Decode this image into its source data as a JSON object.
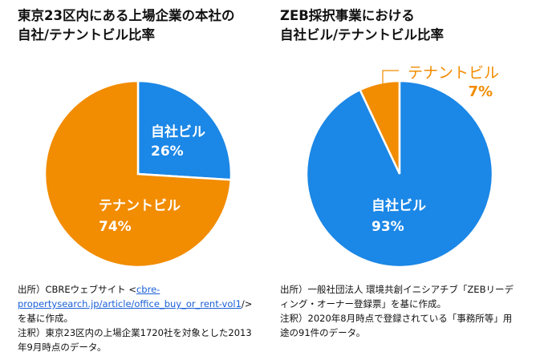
{
  "colors": {
    "own": "#1b87e6",
    "tenant": "#f28c00"
  },
  "chart_data": [
    {
      "type": "pie",
      "title": [
        "東京23区内にある上場企業の本社の",
        "自社/テナントビル比率"
      ],
      "slices": [
        {
          "label": "自社ビル",
          "value": 26,
          "text": "26%"
        },
        {
          "label": "テナントビル",
          "value": 74,
          "text": "74%"
        }
      ],
      "note": {
        "source_prefix": "出所）CBREウェブサイト <",
        "link": "cbre-propertysearch.jp/article/office_buy_or_rent-vol1",
        "source_suffix": "/>を基に作成。",
        "remark": "注釈）東京23区内の上場企業1720社を対象とした2013年9月時点のデータ。"
      }
    },
    {
      "type": "pie",
      "title": [
        "ZEB採択事業における",
        "自社ビル/テナントビル比率"
      ],
      "slices": [
        {
          "label": "自社ビル",
          "value": 93,
          "text": "93%"
        },
        {
          "label": "テナントビル",
          "value": 7,
          "text": "7%"
        }
      ],
      "note": {
        "source": "出所）一般社団法人 環境共創イニシアチブ「ZEBリーディング・オーナー登録票」を基に作成。",
        "remark": "注釈）2020年8月時点で登録されている「事務所等」用途の91件のデータ。"
      }
    }
  ]
}
